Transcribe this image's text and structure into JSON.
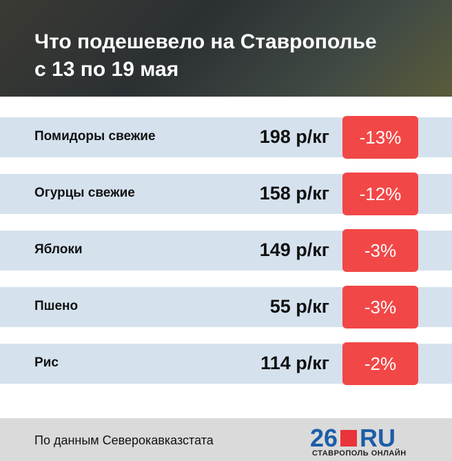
{
  "header": {
    "title_lines": [
      "Что подешевело на Ставрополье",
      "с 13 по 19 мая"
    ]
  },
  "table": {
    "rows": [
      [
        "Помидоры свежие",
        "198 р/кг",
        "-13%"
      ],
      [
        "Огурцы свежие",
        "158 р/кг",
        "-12%"
      ],
      [
        "Яблоки",
        "149 р/кг",
        "-3%"
      ],
      [
        "Пшено",
        "55 р/кг",
        "-3%"
      ],
      [
        "Рис",
        "114 р/кг",
        "-2%"
      ]
    ]
  },
  "footer": {
    "source": "По данным Северокавказстата",
    "logo_number": "26",
    "logo_domain": "RU",
    "logo_tagline": "СТАВРОПОЛЬ ОНЛАЙН"
  }
}
